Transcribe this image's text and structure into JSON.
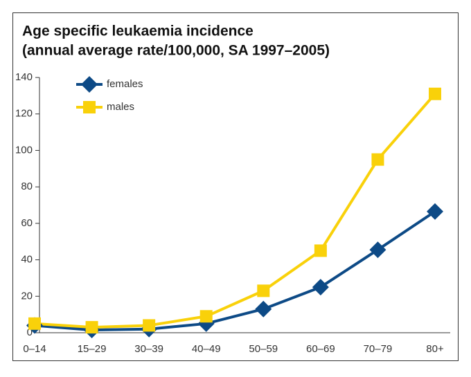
{
  "chart_data": {
    "type": "line",
    "title": [
      "Age specific leukaemia incidence",
      "(annual average rate/100,000, SA 1997–2005)"
    ],
    "categories": [
      "0–14",
      "15–29",
      "30–39",
      "40–49",
      "50–59",
      "60–69",
      "70–79",
      "80+"
    ],
    "series": [
      {
        "name": "females",
        "color": "#0d4a86",
        "marker": "diamond",
        "values": [
          4,
          1.5,
          2,
          5,
          13,
          25,
          45.5,
          66.5
        ]
      },
      {
        "name": "males",
        "color": "#f9d10a",
        "marker": "square",
        "values": [
          5,
          3,
          4,
          9,
          23,
          45,
          95,
          131
        ]
      }
    ],
    "ylim": [
      0,
      140
    ],
    "yticks": [
      0,
      20,
      40,
      60,
      80,
      100,
      120,
      140
    ],
    "grid": false,
    "legend": "top-left"
  }
}
